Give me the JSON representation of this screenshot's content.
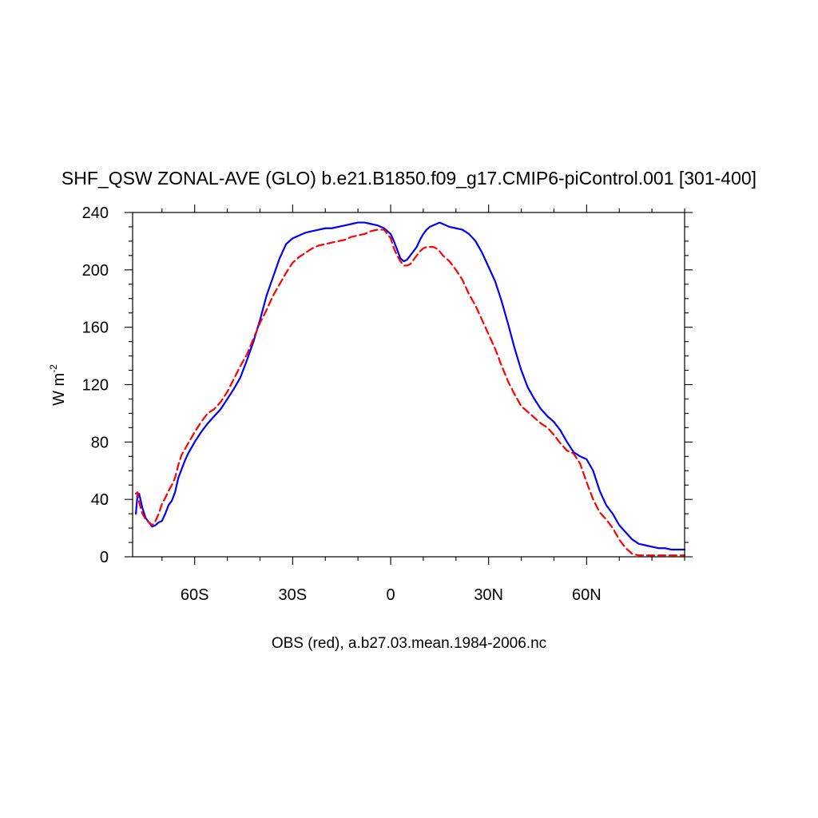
{
  "chart_data": {
    "type": "line",
    "title": "SHF_QSW ZONAL-AVE (GLO) b.e21.B1850.f09_g17.CMIP6-piControl.001 [301-400]",
    "xlabel": "OBS (red), a.b27.03.mean.1984-2006.nc",
    "ylabel": "W m",
    "ylabel_exponent": "-2",
    "xlim": [
      -79,
      90
    ],
    "ylim": [
      0,
      240
    ],
    "x_ticks": [
      {
        "value": -60,
        "label": "60S"
      },
      {
        "value": -30,
        "label": "30S"
      },
      {
        "value": 0,
        "label": "0"
      },
      {
        "value": 30,
        "label": "30N"
      },
      {
        "value": 60,
        "label": "60N"
      }
    ],
    "x_minor_step": 10,
    "y_ticks": [
      0,
      40,
      80,
      120,
      160,
      200,
      240
    ],
    "y_minor_step": 10,
    "grid": false,
    "colors": {
      "model": "#0000ff",
      "obs": "#ff0000",
      "axis": "#000000"
    },
    "series": [
      {
        "color": "#0000ff",
        "style": "solid",
        "x": [
          -78,
          -77.5,
          -77,
          -76,
          -75,
          -74,
          -73,
          -72,
          -71,
          -70,
          -69,
          -68,
          -67,
          -66,
          -65,
          -64,
          -63,
          -62,
          -61,
          -60,
          -58,
          -56,
          -54,
          -52,
          -50,
          -48,
          -46,
          -44,
          -42,
          -40,
          -38,
          -36,
          -34,
          -32,
          -30,
          -28,
          -26,
          -24,
          -22,
          -20,
          -18,
          -16,
          -14,
          -12,
          -10,
          -8,
          -6,
          -4,
          -2,
          0,
          1,
          2,
          3,
          4,
          5,
          6,
          7,
          8,
          9,
          10,
          11,
          12,
          13,
          14,
          15,
          16,
          18,
          20,
          22,
          24,
          26,
          28,
          30,
          32,
          34,
          36,
          38,
          40,
          42,
          44,
          46,
          48,
          50,
          52,
          54,
          56,
          58,
          60,
          62,
          64,
          66,
          68,
          70,
          72,
          74,
          76,
          78,
          80,
          82,
          84,
          86,
          88,
          90
        ],
        "y": [
          30,
          43,
          44,
          34,
          27,
          24,
          21,
          22,
          24,
          25,
          30,
          36,
          39,
          45,
          55,
          61,
          67,
          72,
          76,
          80,
          87,
          93,
          98,
          103,
          110,
          117,
          125,
          137,
          150,
          165,
          182,
          195,
          208,
          218,
          222,
          224,
          226,
          227,
          228,
          229,
          229,
          230,
          231,
          232,
          233,
          233,
          232,
          231,
          229,
          225,
          220,
          214,
          208,
          206,
          207,
          210,
          213,
          216,
          221,
          225,
          228,
          230,
          231,
          232,
          233,
          232,
          230,
          229,
          228,
          225,
          220,
          212,
          202,
          192,
          178,
          162,
          145,
          130,
          118,
          110,
          103,
          98,
          94,
          88,
          80,
          73,
          70,
          68,
          60,
          46,
          36,
          30,
          22,
          17,
          12,
          9,
          8,
          7,
          6,
          6,
          5,
          5,
          5
        ]
      },
      {
        "color": "#ff0000",
        "style": "dashed",
        "x": [
          -78,
          -77.5,
          -77,
          -76,
          -75,
          -74,
          -73,
          -72,
          -71,
          -70,
          -69,
          -68,
          -67,
          -66,
          -65,
          -64,
          -63,
          -62,
          -61,
          -60,
          -58,
          -56,
          -54,
          -52,
          -50,
          -48,
          -46,
          -44,
          -42,
          -40,
          -38,
          -36,
          -34,
          -32,
          -30,
          -28,
          -26,
          -24,
          -22,
          -20,
          -18,
          -16,
          -14,
          -12,
          -10,
          -8,
          -6,
          -4,
          -2,
          0,
          1,
          2,
          3,
          4,
          5,
          6,
          7,
          8,
          9,
          10,
          11,
          12,
          13,
          14,
          15,
          16,
          18,
          20,
          22,
          24,
          26,
          28,
          30,
          32,
          34,
          36,
          38,
          40,
          42,
          44,
          46,
          48,
          50,
          52,
          54,
          56,
          58,
          60,
          62,
          64,
          66,
          68,
          70,
          72,
          74,
          76,
          78,
          80,
          82,
          84,
          86,
          88,
          90
        ],
        "y": [
          44,
          45,
          38,
          30,
          26,
          24,
          22,
          25,
          30,
          37,
          41,
          46,
          50,
          55,
          64,
          71,
          75,
          79,
          83,
          87,
          94,
          100,
          103,
          108,
          115,
          124,
          133,
          141,
          152,
          163,
          172,
          182,
          190,
          198,
          205,
          209,
          212,
          215,
          217,
          218,
          219,
          220,
          221,
          223,
          224,
          225,
          227,
          228,
          228,
          222,
          215,
          210,
          206,
          203,
          203,
          204,
          207,
          210,
          213,
          215,
          216,
          216,
          216,
          215,
          213,
          210,
          206,
          200,
          193,
          183,
          175,
          165,
          155,
          145,
          133,
          122,
          113,
          105,
          101,
          97,
          93,
          90,
          85,
          79,
          74,
          72,
          65,
          52,
          40,
          31,
          26,
          20,
          12,
          6,
          2,
          1,
          1,
          1,
          1,
          1,
          1,
          1,
          1
        ]
      }
    ]
  }
}
